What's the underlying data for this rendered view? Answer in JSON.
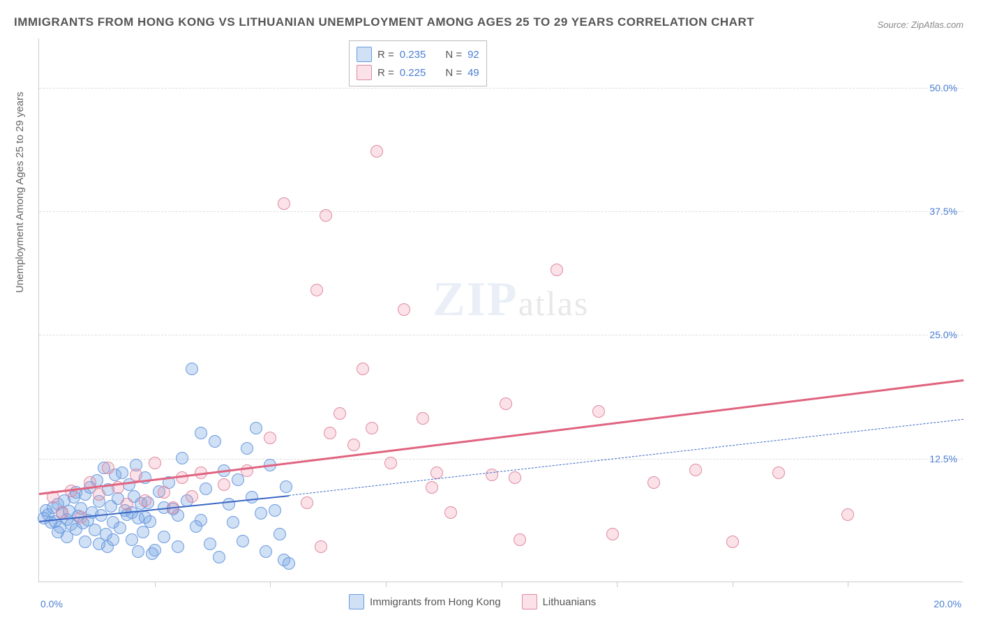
{
  "title": "IMMIGRANTS FROM HONG KONG VS LITHUANIAN UNEMPLOYMENT AMONG AGES 25 TO 29 YEARS CORRELATION CHART",
  "source": "Source: ZipAtlas.com",
  "ylabel": "Unemployment Among Ages 25 to 29 years",
  "watermark_zip": "ZIP",
  "watermark_atlas": "atlas",
  "chart": {
    "type": "scatter",
    "xlim": [
      0,
      20
    ],
    "ylim": [
      0,
      55
    ],
    "x_ticks": [
      0,
      2.5,
      5,
      7.5,
      10,
      12.5,
      15,
      17.5,
      20
    ],
    "y_ticks": [
      12.5,
      25,
      37.5,
      50
    ],
    "x_tick_labels": {
      "0": "0.0%",
      "20": "20.0%"
    },
    "y_tick_labels": {
      "12.5": "12.5%",
      "25": "25.0%",
      "37.5": "37.5%",
      "50": "50.0%"
    },
    "background_color": "#ffffff",
    "grid_color": "#dddddd",
    "axis_color": "#cccccc",
    "tick_label_color": "#4a7dd4",
    "tick_fontsize": 14,
    "title_fontsize": 17,
    "title_color": "#555555",
    "label_fontsize": 15,
    "label_color": "#666666"
  },
  "series": [
    {
      "name": "Immigrants from Hong Kong",
      "marker_color": "rgba(120,165,225,0.35)",
      "marker_border": "#6a9ae0",
      "marker_size": 18,
      "R": "0.235",
      "N": "92",
      "trend": {
        "x0": 0,
        "y0": 6.2,
        "x1": 5.4,
        "y1": 8.8,
        "dash_x1": 20,
        "dash_y1": 16.5,
        "color": "#3a66c4",
        "width": 2
      },
      "points": [
        [
          0.1,
          6.4
        ],
        [
          0.15,
          7.2
        ],
        [
          0.2,
          6.8
        ],
        [
          0.25,
          6.0
        ],
        [
          0.3,
          7.5
        ],
        [
          0.35,
          6.1
        ],
        [
          0.4,
          7.8
        ],
        [
          0.45,
          5.5
        ],
        [
          0.5,
          6.9
        ],
        [
          0.55,
          8.2
        ],
        [
          0.6,
          6.3
        ],
        [
          0.65,
          7.1
        ],
        [
          0.7,
          5.8
        ],
        [
          0.75,
          8.5
        ],
        [
          0.8,
          9.0
        ],
        [
          0.85,
          6.6
        ],
        [
          0.9,
          7.4
        ],
        [
          0.95,
          5.9
        ],
        [
          1.0,
          8.8
        ],
        [
          1.05,
          6.2
        ],
        [
          1.1,
          9.5
        ],
        [
          1.15,
          7.0
        ],
        [
          1.2,
          5.2
        ],
        [
          1.25,
          10.2
        ],
        [
          1.3,
          8.1
        ],
        [
          1.35,
          6.7
        ],
        [
          1.4,
          11.5
        ],
        [
          1.45,
          4.8
        ],
        [
          1.5,
          9.3
        ],
        [
          1.55,
          7.6
        ],
        [
          1.6,
          6.0
        ],
        [
          1.65,
          10.8
        ],
        [
          1.7,
          8.4
        ],
        [
          1.75,
          5.4
        ],
        [
          1.8,
          11.0
        ],
        [
          1.85,
          7.2
        ],
        [
          1.9,
          6.8
        ],
        [
          1.95,
          9.8
        ],
        [
          2.0,
          4.2
        ],
        [
          2.05,
          8.6
        ],
        [
          2.1,
          11.8
        ],
        [
          2.15,
          6.4
        ],
        [
          2.2,
          7.9
        ],
        [
          2.25,
          5.0
        ],
        [
          2.3,
          10.5
        ],
        [
          2.35,
          8.0
        ],
        [
          2.4,
          6.1
        ],
        [
          2.5,
          3.2
        ],
        [
          2.6,
          9.1
        ],
        [
          2.7,
          4.5
        ],
        [
          2.8,
          10.0
        ],
        [
          2.9,
          7.3
        ],
        [
          3.0,
          6.7
        ],
        [
          3.1,
          12.5
        ],
        [
          3.2,
          8.2
        ],
        [
          3.3,
          21.5
        ],
        [
          3.4,
          5.6
        ],
        [
          3.5,
          15.0
        ],
        [
          3.6,
          9.4
        ],
        [
          3.7,
          3.8
        ],
        [
          3.8,
          14.2
        ],
        [
          3.9,
          2.5
        ],
        [
          4.0,
          11.2
        ],
        [
          4.1,
          7.8
        ],
        [
          4.2,
          6.0
        ],
        [
          4.3,
          10.3
        ],
        [
          4.4,
          4.1
        ],
        [
          4.5,
          13.5
        ],
        [
          4.6,
          8.5
        ],
        [
          4.7,
          15.5
        ],
        [
          4.8,
          6.9
        ],
        [
          4.9,
          3.0
        ],
        [
          5.0,
          11.8
        ],
        [
          5.1,
          7.2
        ],
        [
          5.2,
          4.8
        ],
        [
          5.3,
          2.2
        ],
        [
          5.35,
          9.6
        ],
        [
          5.4,
          1.8
        ],
        [
          1.48,
          3.5
        ],
        [
          2.15,
          3.0
        ],
        [
          2.45,
          2.8
        ],
        [
          0.4,
          5.0
        ],
        [
          0.6,
          4.5
        ],
        [
          0.8,
          5.3
        ],
        [
          1.0,
          4.0
        ],
        [
          1.3,
          3.8
        ],
        [
          1.6,
          4.2
        ],
        [
          2.0,
          7.0
        ],
        [
          2.3,
          6.5
        ],
        [
          2.7,
          7.5
        ],
        [
          3.0,
          3.5
        ],
        [
          3.5,
          6.2
        ]
      ]
    },
    {
      "name": "Lithuanians",
      "marker_color": "rgba(235,140,165,0.25)",
      "marker_border": "#e08aa0",
      "marker_size": 18,
      "R": "0.225",
      "N": "49",
      "trend": {
        "x0": 0,
        "y0": 9.0,
        "x1": 20,
        "y1": 20.5,
        "color": "#e0637f",
        "width": 2.5
      },
      "points": [
        [
          0.3,
          8.5
        ],
        [
          0.5,
          7.0
        ],
        [
          0.7,
          9.2
        ],
        [
          0.9,
          6.5
        ],
        [
          1.1,
          10.0
        ],
        [
          1.3,
          8.8
        ],
        [
          1.5,
          11.5
        ],
        [
          1.7,
          9.5
        ],
        [
          1.9,
          7.8
        ],
        [
          2.1,
          10.8
        ],
        [
          2.3,
          8.2
        ],
        [
          2.5,
          12.0
        ],
        [
          2.7,
          9.0
        ],
        [
          2.9,
          7.5
        ],
        [
          3.1,
          10.5
        ],
        [
          3.3,
          8.6
        ],
        [
          4.5,
          11.2
        ],
        [
          5.0,
          14.5
        ],
        [
          5.3,
          38.2
        ],
        [
          5.8,
          8.0
        ],
        [
          6.0,
          29.5
        ],
        [
          6.1,
          3.5
        ],
        [
          6.2,
          37.0
        ],
        [
          6.3,
          15.0
        ],
        [
          6.5,
          17.0
        ],
        [
          6.8,
          13.8
        ],
        [
          7.0,
          21.5
        ],
        [
          7.2,
          15.5
        ],
        [
          7.3,
          43.5
        ],
        [
          7.6,
          12.0
        ],
        [
          7.9,
          27.5
        ],
        [
          8.3,
          16.5
        ],
        [
          8.5,
          9.5
        ],
        [
          8.6,
          11.0
        ],
        [
          8.9,
          7.0
        ],
        [
          9.8,
          10.8
        ],
        [
          10.1,
          18.0
        ],
        [
          10.3,
          10.5
        ],
        [
          10.4,
          4.2
        ],
        [
          11.2,
          31.5
        ],
        [
          12.1,
          17.2
        ],
        [
          12.4,
          4.8
        ],
        [
          13.3,
          10.0
        ],
        [
          14.2,
          11.3
        ],
        [
          15.0,
          4.0
        ],
        [
          16.0,
          11.0
        ],
        [
          17.5,
          6.8
        ],
        [
          4.0,
          9.8
        ],
        [
          3.5,
          11.0
        ]
      ]
    }
  ],
  "legend_top": {
    "r_label": "R =",
    "n_label": "N ="
  },
  "legend_bottom": {
    "series1": "Immigrants from Hong Kong",
    "series2": "Lithuanians"
  }
}
